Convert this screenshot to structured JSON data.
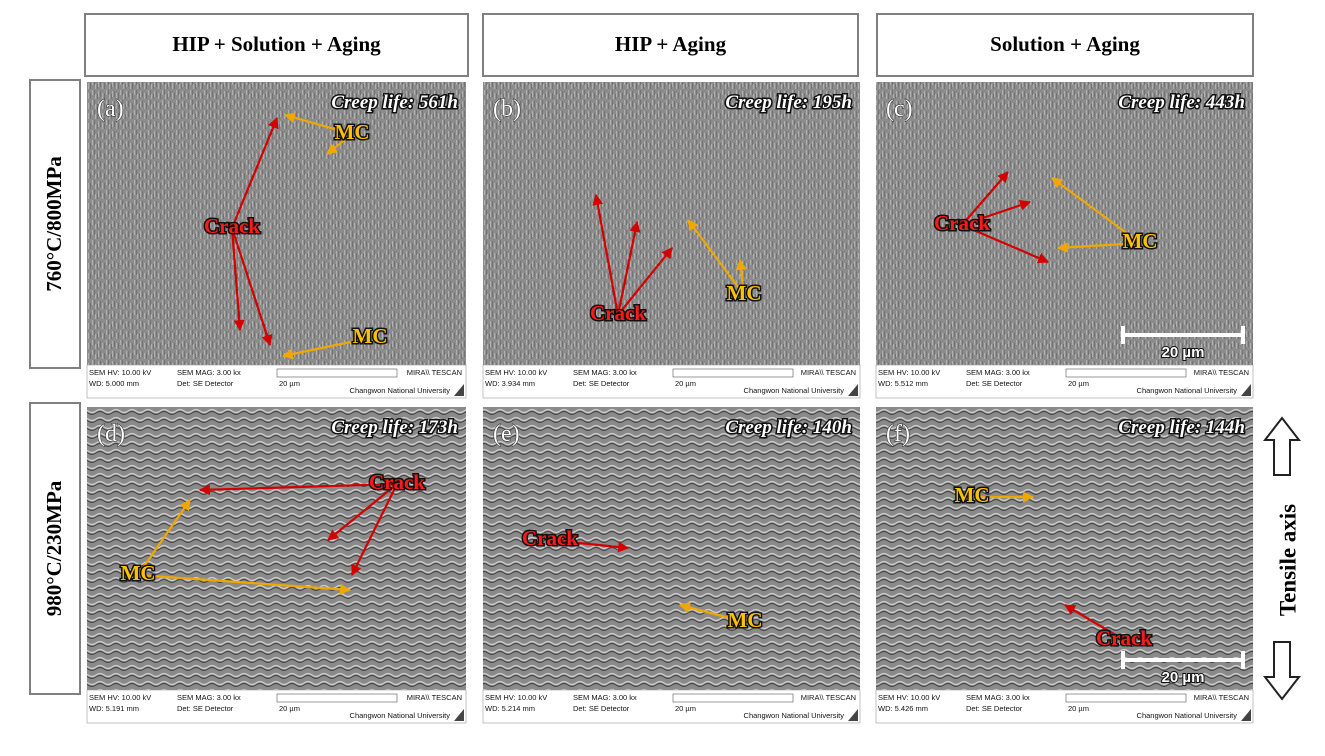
{
  "columns": [
    "HIP + Solution + Aging",
    "HIP + Aging",
    "Solution + Aging"
  ],
  "rows": [
    "760°C/800MPa",
    "980°C/230MPa"
  ],
  "panels": [
    {
      "label": "(a)",
      "creep_life": "Creep life: 561h",
      "annotations": [
        "MC",
        "Crack",
        "MC"
      ],
      "sem": {
        "hv": "SEM HV: 10.00 kV",
        "wd": "WD: 5.000 mm",
        "mag": "SEM MAG: 3.00 kx",
        "det": "Det: SE Detector",
        "scale": "20 µm",
        "brand": "MIRA\\\\ TESCAN",
        "institution": "Changwon National University"
      }
    },
    {
      "label": "(b)",
      "creep_life": "Creep life: 195h",
      "annotations": [
        "Crack",
        "MC"
      ],
      "sem": {
        "hv": "SEM HV: 10.00 kV",
        "wd": "WD: 3.934 mm",
        "mag": "SEM MAG: 3.00 kx",
        "det": "Det: SE Detector",
        "scale": "20 µm",
        "brand": "MIRA\\\\ TESCAN",
        "institution": "Changwon National University"
      }
    },
    {
      "label": "(c)",
      "creep_life": "Creep life: 443h",
      "annotations": [
        "Crack",
        "MC"
      ],
      "scale_bar": "20 µm",
      "sem": {
        "hv": "SEM HV: 10.00 kV",
        "wd": "WD: 5.512 mm",
        "mag": "SEM MAG: 3.00 kx",
        "det": "Det: SE Detector",
        "scale": "20 µm",
        "brand": "MIRA\\\\ TESCAN",
        "institution": "Changwon National University"
      }
    },
    {
      "label": "(d)",
      "creep_life": "Creep life: 173h",
      "annotations": [
        "Crack",
        "MC"
      ],
      "sem": {
        "hv": "SEM HV: 10.00 kV",
        "wd": "WD: 5.191 mm",
        "mag": "SEM MAG: 3.00 kx",
        "det": "Det: SE Detector",
        "scale": "20 µm",
        "brand": "MIRA\\\\ TESCAN",
        "institution": "Changwon National University"
      }
    },
    {
      "label": "(e)",
      "creep_life": "Creep life: 140h",
      "annotations": [
        "Crack",
        "MC"
      ],
      "sem": {
        "hv": "SEM HV: 10.00 kV",
        "wd": "WD: 5.214 mm",
        "mag": "SEM MAG: 3.00 kx",
        "det": "Det: SE Detector",
        "scale": "20 µm",
        "brand": "MIRA\\\\ TESCAN",
        "institution": "Changwon National University"
      }
    },
    {
      "label": "(f)",
      "creep_life": "Creep life: 144h",
      "annotations": [
        "MC",
        "Crack"
      ],
      "scale_bar": "20 µm",
      "sem": {
        "hv": "SEM HV: 10.00 kV",
        "wd": "WD: 5.426 mm",
        "mag": "SEM MAG: 3.00 kx",
        "det": "Det: SE Detector",
        "scale": "20 µm",
        "brand": "MIRA\\\\ TESCAN",
        "institution": "Changwon National University"
      }
    }
  ],
  "tensile_axis": "Tensile axis"
}
